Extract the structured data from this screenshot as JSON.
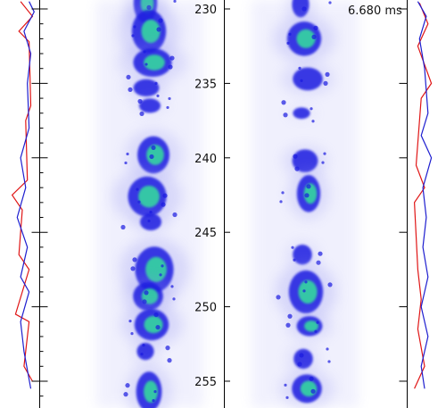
{
  "timestamp": "6.680 ms",
  "colors": {
    "spray_blue": "#1a1ae0",
    "spray_haze": "#8c8cf0",
    "spray_core": "#34d6a0",
    "profile_red": "#e01515",
    "profile_blue": "#1e1ecf",
    "axis": "#000000"
  },
  "chart_data": {
    "type": "heatmap",
    "title": "",
    "xlabel": "",
    "ylabel": "",
    "ylim": [
      229.4,
      256.8
    ],
    "yticks": [
      230,
      235,
      240,
      245,
      250,
      255
    ],
    "ytick_labels": [
      "230",
      "235",
      "240",
      "245",
      "250",
      "255"
    ],
    "grid": false,
    "panels": [
      {
        "name": "left-field",
        "blobs": [
          {
            "y": 229.6,
            "w": 0.55,
            "h": 1.4,
            "v": 0.8
          },
          {
            "y": 231.5,
            "w": 0.8,
            "h": 1.5,
            "v": 1.0
          },
          {
            "y": 233.6,
            "w": 0.9,
            "h": 1.0,
            "v": 0.85
          },
          {
            "y": 235.3,
            "w": 0.6,
            "h": 0.6,
            "v": 0.7
          },
          {
            "y": 236.5,
            "w": 0.5,
            "h": 0.5,
            "v": 0.4
          },
          {
            "y": 239.8,
            "w": 0.75,
            "h": 1.3,
            "v": 0.85
          },
          {
            "y": 242.6,
            "w": 0.9,
            "h": 1.4,
            "v": 0.95
          },
          {
            "y": 244.3,
            "w": 0.5,
            "h": 0.6,
            "v": 0.55
          },
          {
            "y": 247.5,
            "w": 0.9,
            "h": 1.6,
            "v": 1.0
          },
          {
            "y": 249.3,
            "w": 0.7,
            "h": 1.0,
            "v": 0.9
          },
          {
            "y": 251.2,
            "w": 0.8,
            "h": 1.1,
            "v": 0.95
          },
          {
            "y": 253.0,
            "w": 0.4,
            "h": 0.6,
            "v": 0.6
          },
          {
            "y": 255.7,
            "w": 0.6,
            "h": 1.4,
            "v": 0.9
          }
        ]
      },
      {
        "name": "right-field",
        "blobs": [
          {
            "y": 229.7,
            "w": 0.4,
            "h": 0.9,
            "v": 0.7
          },
          {
            "y": 232.0,
            "w": 0.8,
            "h": 1.2,
            "v": 0.95
          },
          {
            "y": 234.7,
            "w": 0.7,
            "h": 0.8,
            "v": 0.75
          },
          {
            "y": 237.0,
            "w": 0.4,
            "h": 0.4,
            "v": 0.35
          },
          {
            "y": 240.2,
            "w": 0.6,
            "h": 0.8,
            "v": 0.75
          },
          {
            "y": 242.4,
            "w": 0.55,
            "h": 1.3,
            "v": 0.85
          },
          {
            "y": 246.5,
            "w": 0.45,
            "h": 0.7,
            "v": 0.55
          },
          {
            "y": 249.0,
            "w": 0.8,
            "h": 1.5,
            "v": 1.0
          },
          {
            "y": 251.3,
            "w": 0.6,
            "h": 0.7,
            "v": 0.8
          },
          {
            "y": 253.5,
            "w": 0.45,
            "h": 0.7,
            "v": 0.6
          },
          {
            "y": 255.5,
            "w": 0.7,
            "h": 1.0,
            "v": 0.85
          }
        ]
      }
    ],
    "side_profiles": [
      {
        "name": "left-profile",
        "red": [
          [
            229.5,
            0.55
          ],
          [
            230.5,
            0.2
          ],
          [
            231.5,
            0.6
          ],
          [
            232.2,
            0.3
          ],
          [
            236.5,
            0.25
          ],
          [
            237.5,
            0.4
          ],
          [
            241.5,
            0.35
          ],
          [
            242.5,
            0.8
          ],
          [
            243.5,
            0.5
          ],
          [
            246.5,
            0.6
          ],
          [
            247.5,
            0.3
          ],
          [
            250.5,
            0.7
          ],
          [
            251.0,
            0.3
          ],
          [
            254.0,
            0.45
          ],
          [
            255.0,
            0.2
          ]
        ],
        "blue": [
          [
            229.5,
            0.3
          ],
          [
            230.2,
            0.15
          ],
          [
            231.5,
            0.45
          ],
          [
            233.0,
            0.25
          ],
          [
            235.0,
            0.35
          ],
          [
            238.0,
            0.3
          ],
          [
            240.0,
            0.55
          ],
          [
            242.0,
            0.4
          ],
          [
            244.0,
            0.65
          ],
          [
            246.0,
            0.35
          ],
          [
            248.0,
            0.55
          ],
          [
            249.0,
            0.3
          ],
          [
            251.0,
            0.55
          ],
          [
            253.0,
            0.45
          ],
          [
            255.5,
            0.25
          ]
        ]
      },
      {
        "name": "right-profile",
        "red": [
          [
            229.6,
            0.35
          ],
          [
            231.0,
            0.6
          ],
          [
            232.5,
            0.3
          ],
          [
            235.0,
            0.7
          ],
          [
            236.0,
            0.4
          ],
          [
            240.5,
            0.25
          ],
          [
            242.0,
            0.5
          ],
          [
            243.0,
            0.2
          ],
          [
            247.5,
            0.3
          ],
          [
            249.5,
            0.4
          ],
          [
            251.5,
            0.3
          ],
          [
            254.0,
            0.5
          ],
          [
            255.5,
            0.2
          ]
        ],
        "blue": [
          [
            229.5,
            0.3
          ],
          [
            230.5,
            0.55
          ],
          [
            232.0,
            0.35
          ],
          [
            234.0,
            0.5
          ],
          [
            237.0,
            0.6
          ],
          [
            238.5,
            0.4
          ],
          [
            240.0,
            0.7
          ],
          [
            242.0,
            0.45
          ],
          [
            244.0,
            0.55
          ],
          [
            246.0,
            0.45
          ],
          [
            248.0,
            0.6
          ],
          [
            250.0,
            0.4
          ],
          [
            252.0,
            0.6
          ],
          [
            254.0,
            0.4
          ],
          [
            255.5,
            0.5
          ]
        ]
      }
    ]
  }
}
